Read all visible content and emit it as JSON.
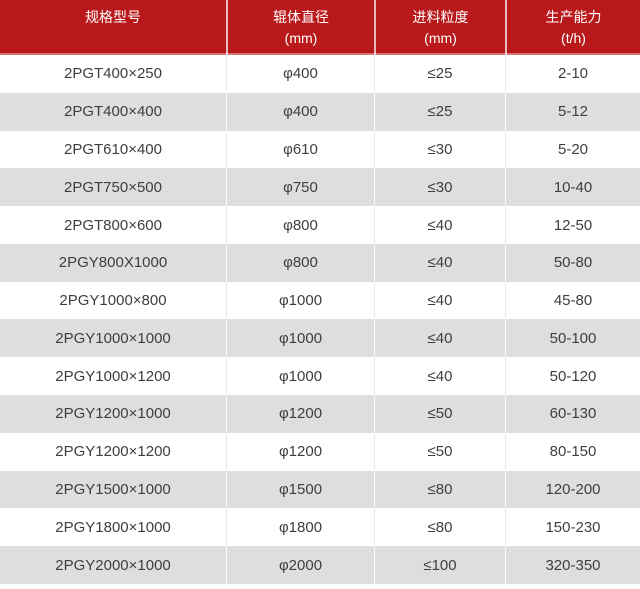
{
  "colors": {
    "header_bg": "#b9191b",
    "header_text": "#ffffff",
    "row_bg": "#ffffff",
    "row_alt_bg": "#dedede",
    "cell_text": "#3e3e3e",
    "divider": "#e9e9e9"
  },
  "chart_data": {
    "type": "table",
    "title": "",
    "legend_position": "none",
    "grid": "row-dividers",
    "columns": [
      {
        "line1": "规格型号",
        "line2": ""
      },
      {
        "line1": "辊体直径",
        "line2": "(mm)"
      },
      {
        "line1": "进料粒度",
        "line2": "(mm)"
      },
      {
        "line1": "生产能力",
        "line2": "(t/h)"
      }
    ],
    "rows": [
      [
        "2PGT400×250",
        "φ400",
        "≤25",
        "2-10"
      ],
      [
        "2PGT400×400",
        "φ400",
        "≤25",
        "5-12"
      ],
      [
        "2PGT610×400",
        "φ610",
        "≤30",
        "5-20"
      ],
      [
        "2PGT750×500",
        "φ750",
        "≤30",
        "10-40"
      ],
      [
        "2PGT800×600",
        "φ800",
        "≤40",
        "12-50"
      ],
      [
        "2PGY800X1000",
        "φ800",
        "≤40",
        "50-80"
      ],
      [
        "2PGY1000×800",
        "φ1000",
        "≤40",
        "45-80"
      ],
      [
        "2PGY1000×1000",
        "φ1000",
        "≤40",
        "50-100"
      ],
      [
        "2PGY1000×1200",
        "φ1000",
        "≤40",
        "50-120"
      ],
      [
        "2PGY1200×1000",
        "φ1200",
        "≤50",
        "60-130"
      ],
      [
        "2PGY1200×1200",
        "φ1200",
        "≤50",
        "80-150"
      ],
      [
        "2PGY1500×1000",
        "φ1500",
        "≤80",
        "120-200"
      ],
      [
        "2PGY1800×1000",
        "φ1800",
        "≤80",
        "150-230"
      ],
      [
        "2PGY2000×1000",
        "φ2000",
        "≤100",
        "320-350"
      ]
    ]
  }
}
